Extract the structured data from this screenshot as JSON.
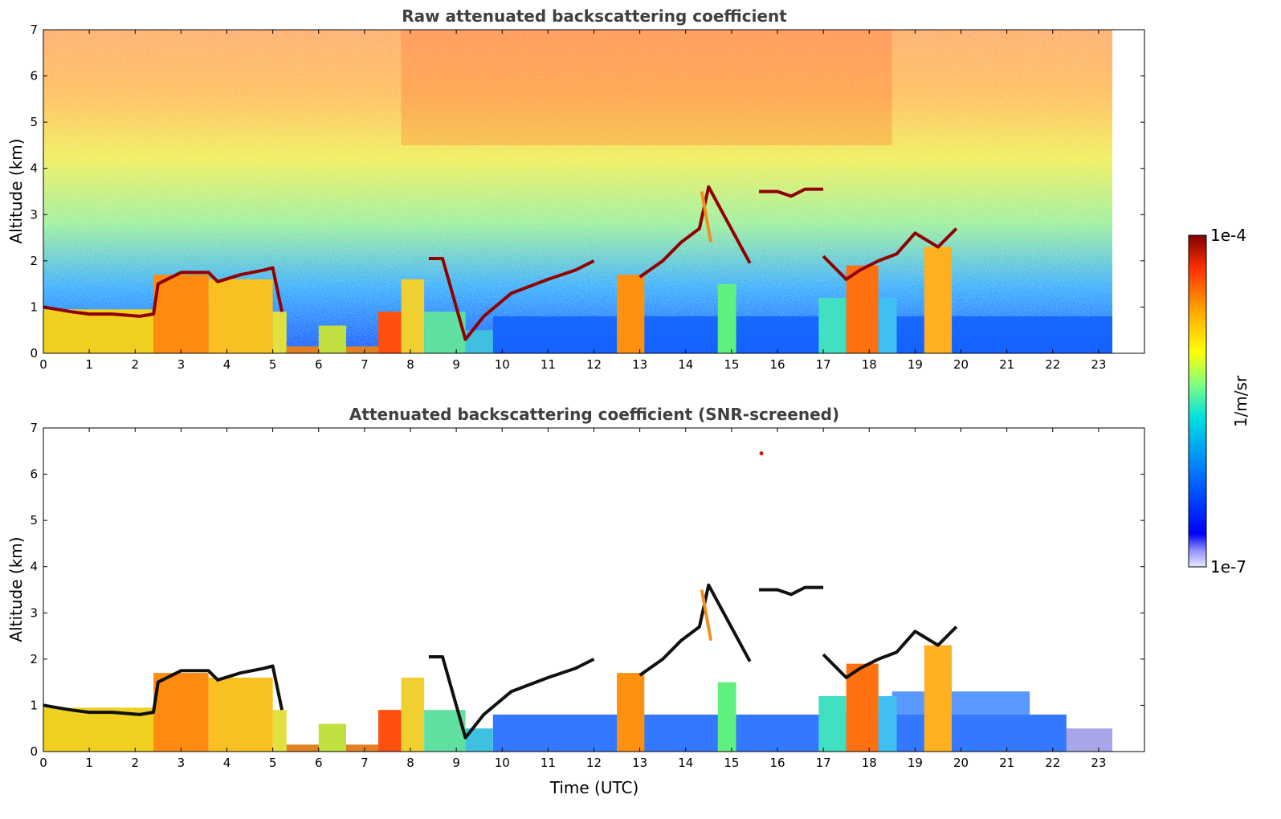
{
  "chart_data": [
    {
      "type": "heatmap",
      "title": "Raw attenuated backscattering coefficient",
      "xlabel": "",
      "ylabel": "Altitude (km)",
      "xlim": [
        0,
        24
      ],
      "ylim": [
        0,
        7
      ],
      "xticks": [
        "0",
        "1",
        "2",
        "3",
        "4",
        "5",
        "6",
        "7",
        "8",
        "9",
        "10",
        "11",
        "12",
        "13",
        "14",
        "15",
        "16",
        "17",
        "18",
        "19",
        "20",
        "21",
        "22",
        "23"
      ],
      "yticks": [
        "0",
        "1",
        "2",
        "3",
        "4",
        "5",
        "6",
        "7"
      ],
      "data_end_time": 23.3,
      "grid": false,
      "features": [
        {
          "name": "aerosol layer top",
          "points": [
            [
              0,
              1.0
            ],
            [
              0.3,
              0.95
            ],
            [
              0.6,
              0.9
            ],
            [
              1,
              0.85
            ],
            [
              1.5,
              0.85
            ],
            [
              2.1,
              0.8
            ],
            [
              2.4,
              0.85
            ],
            [
              2.5,
              1.5
            ],
            [
              3,
              1.75
            ],
            [
              3.6,
              1.75
            ],
            [
              3.8,
              1.55
            ],
            [
              4.3,
              1.7
            ],
            [
              4.8,
              1.8
            ],
            [
              5.0,
              1.85
            ],
            [
              5.2,
              0.9
            ]
          ]
        },
        {
          "name": "rising layer",
          "points": [
            [
              8.4,
              2.05
            ],
            [
              8.7,
              2.05
            ],
            [
              9.2,
              0.3
            ],
            [
              9.6,
              0.8
            ],
            [
              10.2,
              1.3
            ],
            [
              11,
              1.6
            ],
            [
              11.6,
              1.8
            ],
            [
              12,
              2.0
            ]
          ]
        },
        {
          "name": "afternoon cloud",
          "points": [
            [
              13.0,
              1.65
            ],
            [
              13.5,
              2.0
            ],
            [
              13.9,
              2.4
            ],
            [
              14.3,
              2.7
            ],
            [
              14.5,
              3.6
            ],
            [
              15.4,
              1.95
            ]
          ]
        },
        {
          "name": "high cloud",
          "points": [
            [
              15.6,
              3.5
            ],
            [
              16.0,
              3.5
            ],
            [
              16.3,
              3.4
            ],
            [
              16.6,
              3.55
            ],
            [
              17.0,
              3.55
            ]
          ]
        },
        {
          "name": "evening cloud",
          "points": [
            [
              17.0,
              2.1
            ],
            [
              17.5,
              1.6
            ],
            [
              17.8,
              1.8
            ],
            [
              18.2,
              2.0
            ],
            [
              18.6,
              2.15
            ],
            [
              19.0,
              2.6
            ],
            [
              19.5,
              2.3
            ],
            [
              19.9,
              2.7
            ]
          ]
        }
      ]
    },
    {
      "type": "heatmap",
      "title": "Attenuated backscattering coefficient (SNR-screened)",
      "xlabel": "Time (UTC)",
      "ylabel": "Altitude (km)",
      "xlim": [
        0,
        24
      ],
      "ylim": [
        0,
        7
      ],
      "xticks": [
        "0",
        "1",
        "2",
        "3",
        "4",
        "5",
        "6",
        "7",
        "8",
        "9",
        "10",
        "11",
        "12",
        "13",
        "14",
        "15",
        "16",
        "17",
        "18",
        "19",
        "20",
        "21",
        "22",
        "23"
      ],
      "yticks": [
        "0",
        "1",
        "2",
        "3",
        "4",
        "5",
        "6",
        "7"
      ],
      "data_end_time": 23.3,
      "grid": false
    }
  ],
  "colorbar": {
    "label": "1/m/sr",
    "max_label": "1e-4",
    "min_label": "1e-7",
    "colormap": [
      "#ffffff",
      "#0000ff",
      "#0080ff",
      "#00e0e0",
      "#80ff80",
      "#ffff00",
      "#ffa000",
      "#ff3000",
      "#800000"
    ]
  }
}
